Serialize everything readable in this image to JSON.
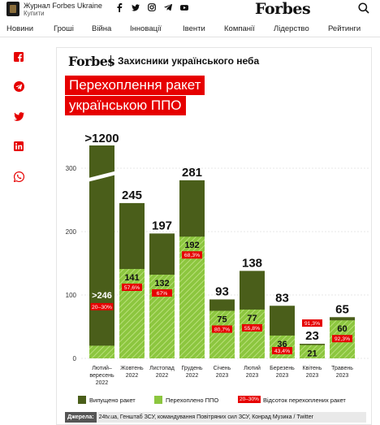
{
  "header": {
    "magazine_title": "Журнал Forbes Ukraine",
    "buy_label": "Купити",
    "brand": "Forbes",
    "social_icons": [
      "facebook-icon",
      "twitter-icon",
      "instagram-icon",
      "telegram-icon",
      "youtube-icon"
    ]
  },
  "nav": {
    "items": [
      "Новини",
      "Гроші",
      "Війна",
      "Інновації",
      "Івенти",
      "Компанії",
      "Лідерство",
      "Рейтинги"
    ]
  },
  "share": {
    "icons": [
      "facebook-icon",
      "telegram-icon",
      "twitter-icon",
      "linkedin-icon",
      "whatsapp-icon"
    ]
  },
  "infographic": {
    "brand": "Forbes",
    "subtitle": "Захисники українського неба",
    "title_line1": "Перехоплення ракет",
    "title_line2": "українською ППО",
    "source_label": "Джерела:",
    "source_text": "24tv.ua, Генштаб ЗСУ, командування Повітряних сил ЗСУ, Конрад Музика / Twitter"
  },
  "colors": {
    "launched": "#4a5e1a",
    "intercepted": "#8cc63f",
    "accent_red": "#e60000"
  },
  "chart_data": {
    "type": "bar",
    "ylim": [
      0,
      300
    ],
    "yticks": [
      0,
      100,
      200,
      300
    ],
    "categories": [
      [
        "Лютий–",
        "вересень",
        "2022"
      ],
      [
        "Жовтень",
        "2022"
      ],
      [
        "Листопад",
        "2022"
      ],
      [
        "Грудень",
        "2022"
      ],
      [
        "Січень",
        "2023"
      ],
      [
        "Лютий",
        "2023"
      ],
      [
        "Березень",
        "2023"
      ],
      [
        "Квітень",
        "2023"
      ],
      [
        "Травень",
        "2023"
      ]
    ],
    "launched_labels": [
      ">1200",
      "245",
      "197",
      "281",
      "93",
      "138",
      "83",
      "23",
      "65"
    ],
    "launched": [
      1200,
      245,
      197,
      281,
      93,
      138,
      83,
      23,
      65
    ],
    "intercepted_labels": [
      ">246",
      "141",
      "132",
      "192",
      "75",
      "77",
      "36",
      "21",
      "60"
    ],
    "intercepted": [
      246,
      141,
      132,
      192,
      75,
      77,
      36,
      21,
      60
    ],
    "percent_labels": [
      "20–30%",
      "57,6%",
      "67%",
      "68,3%",
      "80,7%",
      "55,8%",
      "43,4%",
      "91,3%",
      "92,3%"
    ],
    "legend": {
      "launched": "Випущено ракет",
      "intercepted": "Перехоплено ППО",
      "percent_sample": "20–30%",
      "percent": "Відсоток перехоплених ракет"
    }
  }
}
